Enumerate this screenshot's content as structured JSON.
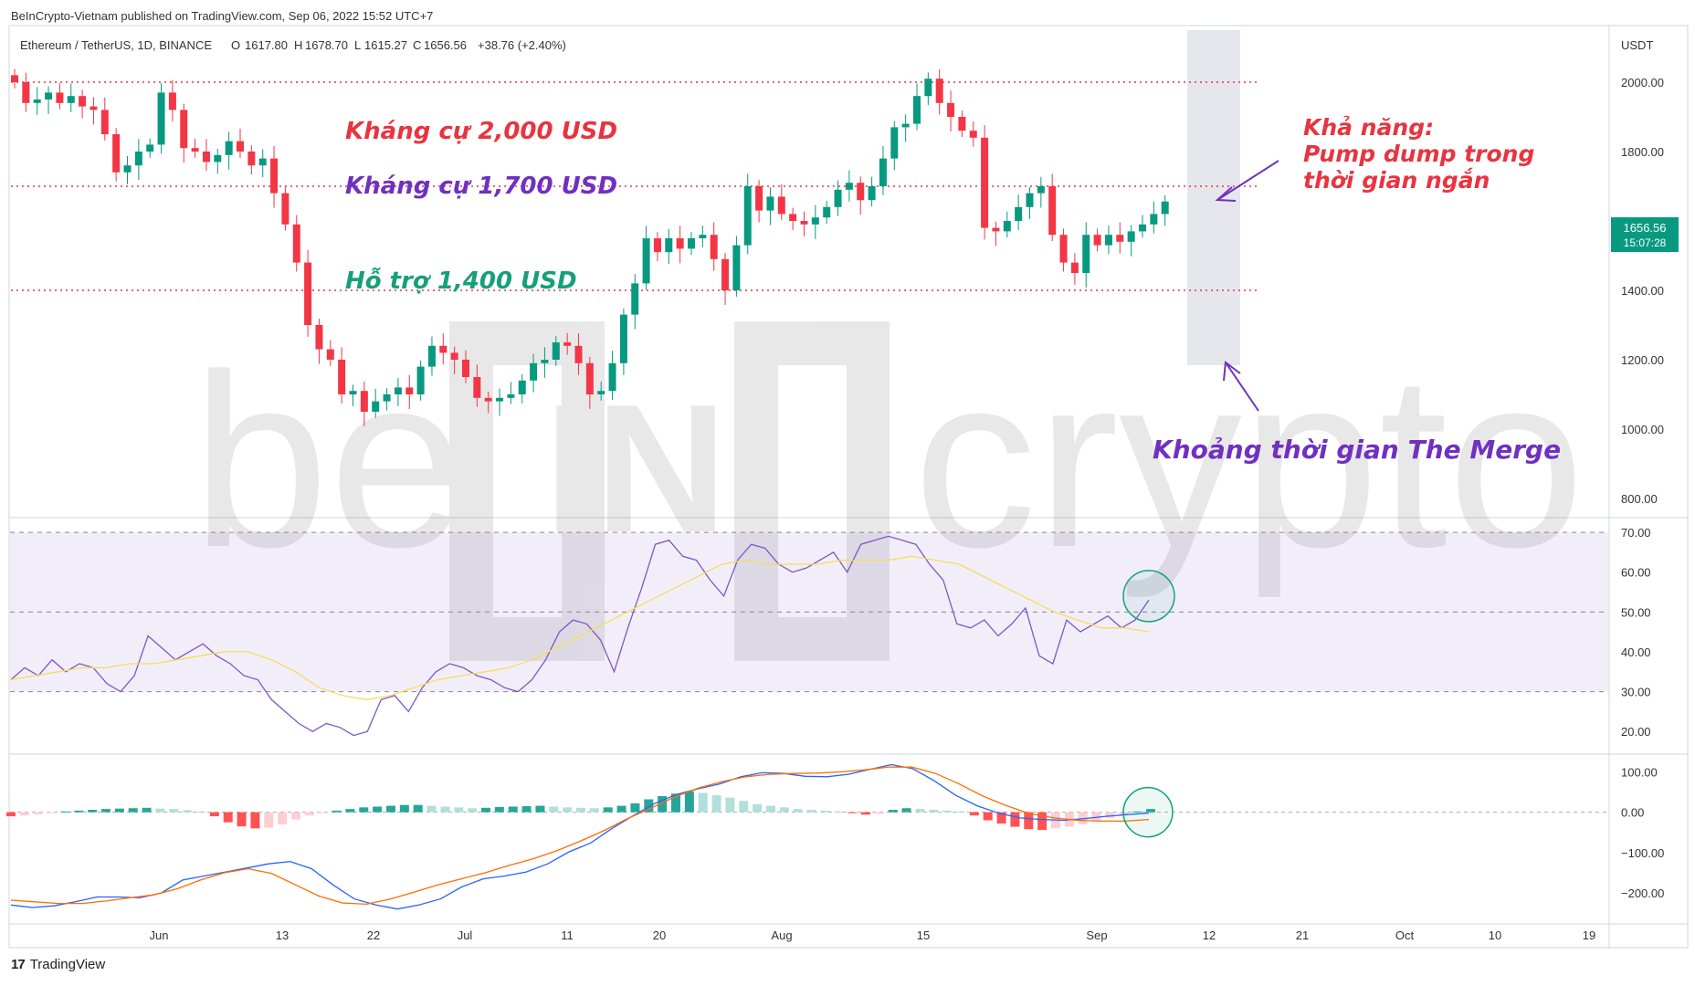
{
  "header": {
    "published": "BeInCrypto-Vietnam published on TradingView.com, Sep 06, 2022 15:52 UTC+7"
  },
  "footer": {
    "brand": "TradingView",
    "logo": "tradingview-logo-icon"
  },
  "watermark": "beincrypto",
  "chart_data": {
    "type": "candlestick",
    "title": "Ethereum / TetherUS, 1D, BINANCE",
    "ohlc_legend": {
      "o_label": "O",
      "o": "1617.80",
      "h_label": "H",
      "h": "1678.70",
      "l_label": "L",
      "l": "1615.27",
      "c_label": "C",
      "c": "1656.56",
      "change": "+38.76 (+2.40%)"
    },
    "currency": "USDT",
    "price_axis": {
      "ticks": [
        "2000.00",
        "1800.00",
        "1600.00",
        "1400.00",
        "1200.00",
        "1000.00",
        "800.00"
      ],
      "ylim": [
        750,
        2150
      ]
    },
    "last_price": {
      "value": "1656.56",
      "countdown": "15:07:28"
    },
    "x_axis": {
      "ticks": [
        "Jun",
        "13",
        "22",
        "Jul",
        "11",
        "20",
        "Aug",
        "15",
        "Sep",
        "12",
        "21",
        "Oct",
        "10",
        "19"
      ]
    },
    "candles_close": [
      2000,
      1940,
      1950,
      1970,
      1940,
      1960,
      1930,
      1920,
      1850,
      1740,
      1760,
      1800,
      1820,
      1970,
      1920,
      1810,
      1800,
      1770,
      1790,
      1830,
      1800,
      1760,
      1780,
      1680,
      1590,
      1480,
      1300,
      1230,
      1200,
      1100,
      1110,
      1050,
      1080,
      1100,
      1120,
      1100,
      1180,
      1240,
      1220,
      1200,
      1150,
      1090,
      1080,
      1090,
      1100,
      1140,
      1190,
      1200,
      1250,
      1240,
      1190,
      1100,
      1110,
      1190,
      1330,
      1420,
      1550,
      1510,
      1550,
      1520,
      1550,
      1560,
      1490,
      1400,
      1530,
      1700,
      1630,
      1670,
      1620,
      1600,
      1590,
      1610,
      1640,
      1690,
      1710,
      1660,
      1700,
      1780,
      1870,
      1880,
      1960,
      2010,
      1940,
      1900,
      1860,
      1840,
      1580,
      1570,
      1600,
      1640,
      1680,
      1700,
      1560,
      1480,
      1450,
      1560,
      1530,
      1560,
      1540,
      1570,
      1590,
      1620,
      1656
    ],
    "horizontal_levels": [
      {
        "price": 2000,
        "label": "Kháng cự 2,000 USD",
        "color": "#e8343f"
      },
      {
        "price": 1700,
        "label": "Kháng cự 1,700 USD",
        "color": "#7030c0"
      },
      {
        "price": 1400,
        "label": "Hỗ trợ 1,400 USD",
        "color": "#16a07a"
      }
    ],
    "merge_zone_label": "Khoảng thời gian The Merge",
    "outlook_label": [
      "Khả năng:",
      "Pump dump trong",
      "thời gian ngắn"
    ],
    "rsi": {
      "ticks": [
        "70.00",
        "60.00",
        "50.00",
        "40.00",
        "30.00",
        "20.00"
      ],
      "ylim": [
        15,
        73
      ],
      "band": [
        30,
        70
      ],
      "values": [
        33,
        36,
        34,
        38,
        35,
        37,
        36,
        32,
        30,
        34,
        44,
        41,
        38,
        40,
        42,
        39,
        37,
        34,
        33,
        28,
        25,
        22,
        20,
        22,
        21,
        19,
        20,
        28,
        29,
        25,
        31,
        35,
        37,
        36,
        34,
        33,
        31,
        30,
        33,
        38,
        45,
        48,
        47,
        43,
        35,
        46,
        56,
        67,
        68,
        64,
        63,
        58,
        54,
        63,
        67,
        66,
        62,
        60,
        61,
        63,
        65,
        60,
        67,
        68,
        69,
        68,
        67,
        62,
        58,
        47,
        46,
        48,
        44,
        47,
        51,
        39,
        37,
        48,
        45,
        47,
        49,
        46,
        48,
        53
      ],
      "signal": [
        33,
        34,
        35,
        36,
        36,
        37,
        37,
        38,
        39,
        40,
        40,
        38,
        35,
        31,
        29,
        28,
        29,
        31,
        33,
        34,
        35,
        36,
        38,
        41,
        44,
        47,
        50,
        53,
        56,
        59,
        62,
        63,
        62,
        62,
        62,
        63,
        63,
        63,
        64,
        63,
        62,
        59,
        56,
        53,
        50,
        48,
        46,
        46,
        45
      ]
    },
    "macd": {
      "ticks": [
        "100.00",
        "0.00",
        "−100.00",
        "−200.00"
      ],
      "ylim": [
        -270,
        135
      ],
      "histogram": [
        -10,
        -8,
        -5,
        -2,
        2,
        4,
        6,
        8,
        9,
        10,
        11,
        9,
        8,
        5,
        2,
        -10,
        -25,
        -35,
        -40,
        -38,
        -30,
        -18,
        -8,
        -2,
        4,
        8,
        12,
        14,
        16,
        18,
        18,
        16,
        14,
        12,
        10,
        11,
        13,
        14,
        15,
        16,
        14,
        12,
        11,
        10,
        12,
        16,
        22,
        32,
        40,
        46,
        52,
        48,
        42,
        36,
        28,
        20,
        16,
        12,
        8,
        6,
        4,
        2,
        -2,
        -6,
        -4,
        6,
        10,
        8,
        6,
        4,
        2,
        -8,
        -20,
        -28,
        -36,
        -42,
        -44,
        -40,
        -36,
        -30,
        -22,
        -14,
        -6,
        2,
        8
      ],
      "macd_line": [
        -230,
        -236,
        -232,
        -222,
        -210,
        -210,
        -212,
        -200,
        -168,
        -158,
        -148,
        -138,
        -128,
        -122,
        -140,
        -180,
        -215,
        -230,
        -240,
        -230,
        -215,
        -185,
        -165,
        -158,
        -148,
        -128,
        -98,
        -76,
        -40,
        -8,
        22,
        44,
        58,
        70,
        88,
        98,
        96,
        89,
        88,
        94,
        106,
        118,
        108,
        78,
        42,
        16,
        -2,
        -14,
        -18,
        -20,
        -16,
        -10,
        -6,
        -2
      ],
      "signal_line": [
        -218,
        -222,
        -226,
        -226,
        -220,
        -212,
        -205,
        -190,
        -168,
        -150,
        -140,
        -152,
        -180,
        -208,
        -225,
        -228,
        -215,
        -198,
        -180,
        -165,
        -150,
        -132,
        -116,
        -96,
        -72,
        -46,
        -16,
        10,
        38,
        60,
        76,
        88,
        94,
        96,
        97,
        100,
        105,
        112,
        112,
        96,
        70,
        40,
        16,
        -4,
        -14,
        -20,
        -22,
        -22,
        -18
      ]
    }
  }
}
